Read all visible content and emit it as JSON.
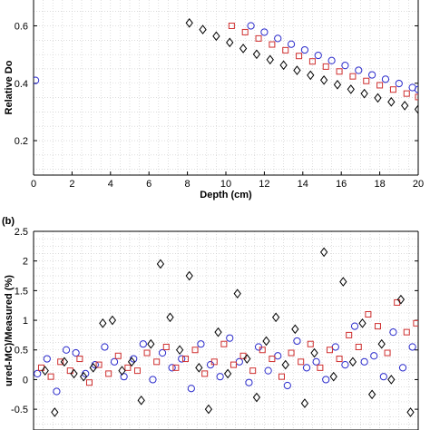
{
  "chart_data": [
    {
      "panel_label": "",
      "type": "scatter",
      "xlabel": "Depth (cm)",
      "ylabel": "Relative Do",
      "xlim": [
        0,
        20
      ],
      "ylim": [
        0.08,
        0.69
      ],
      "xticks": [
        0,
        2,
        4,
        6,
        8,
        10,
        12,
        14,
        16,
        18,
        20
      ],
      "yticks": [
        0.2,
        0.4,
        0.6
      ],
      "grid": true,
      "series": [
        {
          "marker": "circle",
          "color": "#2b2bcc",
          "x": [
            0.1,
            11.3,
            12,
            12.7,
            13.4,
            14.1,
            14.8,
            15.5,
            16.2,
            16.9,
            17.6,
            18.3,
            19,
            19.7,
            20
          ],
          "y": [
            0.41,
            0.6,
            0.578,
            0.556,
            0.536,
            0.516,
            0.497,
            0.479,
            0.462,
            0.445,
            0.429,
            0.414,
            0.399,
            0.385,
            0.378
          ]
        },
        {
          "marker": "square",
          "color": "#d03030",
          "x": [
            10.3,
            11,
            11.7,
            12.4,
            13.1,
            13.8,
            14.5,
            15.2,
            15.9,
            16.6,
            17.3,
            18,
            18.7,
            19.4,
            20
          ],
          "y": [
            0.6,
            0.578,
            0.556,
            0.535,
            0.515,
            0.495,
            0.476,
            0.458,
            0.441,
            0.424,
            0.408,
            0.393,
            0.378,
            0.364,
            0.352
          ]
        },
        {
          "marker": "diamond",
          "color": "#000000",
          "x": [
            8.1,
            8.8,
            9.5,
            10.2,
            10.9,
            11.6,
            12.3,
            13,
            13.7,
            14.4,
            15.1,
            15.8,
            16.5,
            17.2,
            17.9,
            18.6,
            19.3,
            20
          ],
          "y": [
            0.61,
            0.587,
            0.564,
            0.542,
            0.521,
            0.501,
            0.482,
            0.463,
            0.445,
            0.428,
            0.411,
            0.395,
            0.379,
            0.364,
            0.349,
            0.335,
            0.322,
            0.309
          ]
        }
      ]
    },
    {
      "panel_label": "(b)",
      "type": "scatter",
      "xlabel": "",
      "ylabel": "ured-MC)/Measured (%)",
      "xlim": [
        0,
        20
      ],
      "ylim": [
        -0.85,
        2.5
      ],
      "yticks": [
        -0.5,
        0,
        0.5,
        1,
        1.5,
        2,
        2.5
      ],
      "grid": true,
      "series": [
        {
          "marker": "circle",
          "color": "#2b2bcc",
          "x": [
            0.2,
            0.7,
            1.2,
            1.7,
            2.2,
            2.7,
            3.2,
            3.7,
            4.2,
            4.7,
            5.2,
            5.7,
            6.2,
            6.7,
            7.2,
            7.7,
            8.2,
            8.7,
            9.2,
            9.7,
            10.2,
            10.7,
            11.2,
            11.7,
            12.2,
            12.7,
            13.2,
            13.7,
            14.2,
            14.7,
            15.2,
            15.7,
            16.2,
            16.7,
            17.2,
            17.7,
            18.2,
            18.7,
            19.2,
            19.7
          ],
          "y": [
            0.1,
            0.35,
            -0.2,
            0.5,
            0.45,
            0.1,
            0.25,
            0.55,
            0.3,
            0.05,
            0.35,
            0.6,
            0.0,
            0.45,
            0.2,
            0.35,
            -0.15,
            0.6,
            0.25,
            0.05,
            0.7,
            0.3,
            -0.05,
            0.55,
            0.15,
            0.4,
            -0.1,
            0.65,
            0.2,
            0.3,
            0.0,
            0.55,
            0.25,
            0.9,
            0.3,
            0.4,
            0.05,
            0.8,
            0.2,
            0.55
          ]
        },
        {
          "marker": "square",
          "color": "#d03030",
          "x": [
            0.4,
            0.9,
            1.4,
            1.9,
            2.4,
            2.9,
            3.4,
            3.9,
            4.4,
            4.9,
            5.4,
            5.9,
            6.4,
            6.9,
            7.4,
            7.9,
            8.4,
            8.9,
            9.4,
            9.9,
            10.4,
            10.9,
            11.4,
            11.9,
            12.4,
            12.9,
            13.4,
            13.9,
            14.4,
            14.9,
            15.4,
            15.9,
            16.4,
            16.9,
            17.4,
            17.9,
            18.4,
            18.9,
            19.4,
            19.9
          ],
          "y": [
            0.2,
            0.05,
            0.3,
            0.15,
            0.35,
            -0.05,
            0.25,
            0.1,
            0.4,
            0.2,
            0.15,
            0.45,
            0.3,
            0.55,
            0.2,
            0.35,
            0.5,
            0.1,
            0.3,
            0.6,
            0.25,
            0.4,
            0.15,
            0.5,
            0.35,
            0.05,
            0.45,
            0.3,
            0.6,
            0.2,
            0.5,
            0.35,
            0.75,
            0.55,
            1.1,
            0.9,
            0.45,
            1.3,
            0.8,
            0.95
          ]
        },
        {
          "marker": "diamond",
          "color": "#000000",
          "x": [
            0.6,
            1.1,
            1.6,
            2.1,
            2.6,
            3.1,
            3.6,
            4.1,
            4.6,
            5.1,
            5.6,
            6.1,
            6.6,
            7.1,
            7.6,
            8.1,
            8.6,
            9.1,
            9.6,
            10.1,
            10.6,
            11.1,
            11.6,
            12.1,
            12.6,
            13.1,
            13.6,
            14.1,
            14.6,
            15.1,
            15.6,
            16.1,
            16.6,
            17.1,
            17.6,
            18.1,
            18.6,
            19.1,
            19.6
          ],
          "y": [
            0.15,
            -0.55,
            0.3,
            0.1,
            0.05,
            0.2,
            0.95,
            1.0,
            0.15,
            0.3,
            -0.35,
            0.6,
            1.95,
            1.05,
            0.5,
            1.75,
            0.2,
            -0.5,
            0.8,
            0.1,
            1.45,
            0.35,
            -0.3,
            0.65,
            1.05,
            0.25,
            0.85,
            -0.4,
            0.45,
            2.15,
            0.05,
            1.65,
            0.3,
            0.95,
            -0.25,
            0.6,
            0.0,
            1.35,
            -0.55
          ]
        }
      ]
    }
  ]
}
